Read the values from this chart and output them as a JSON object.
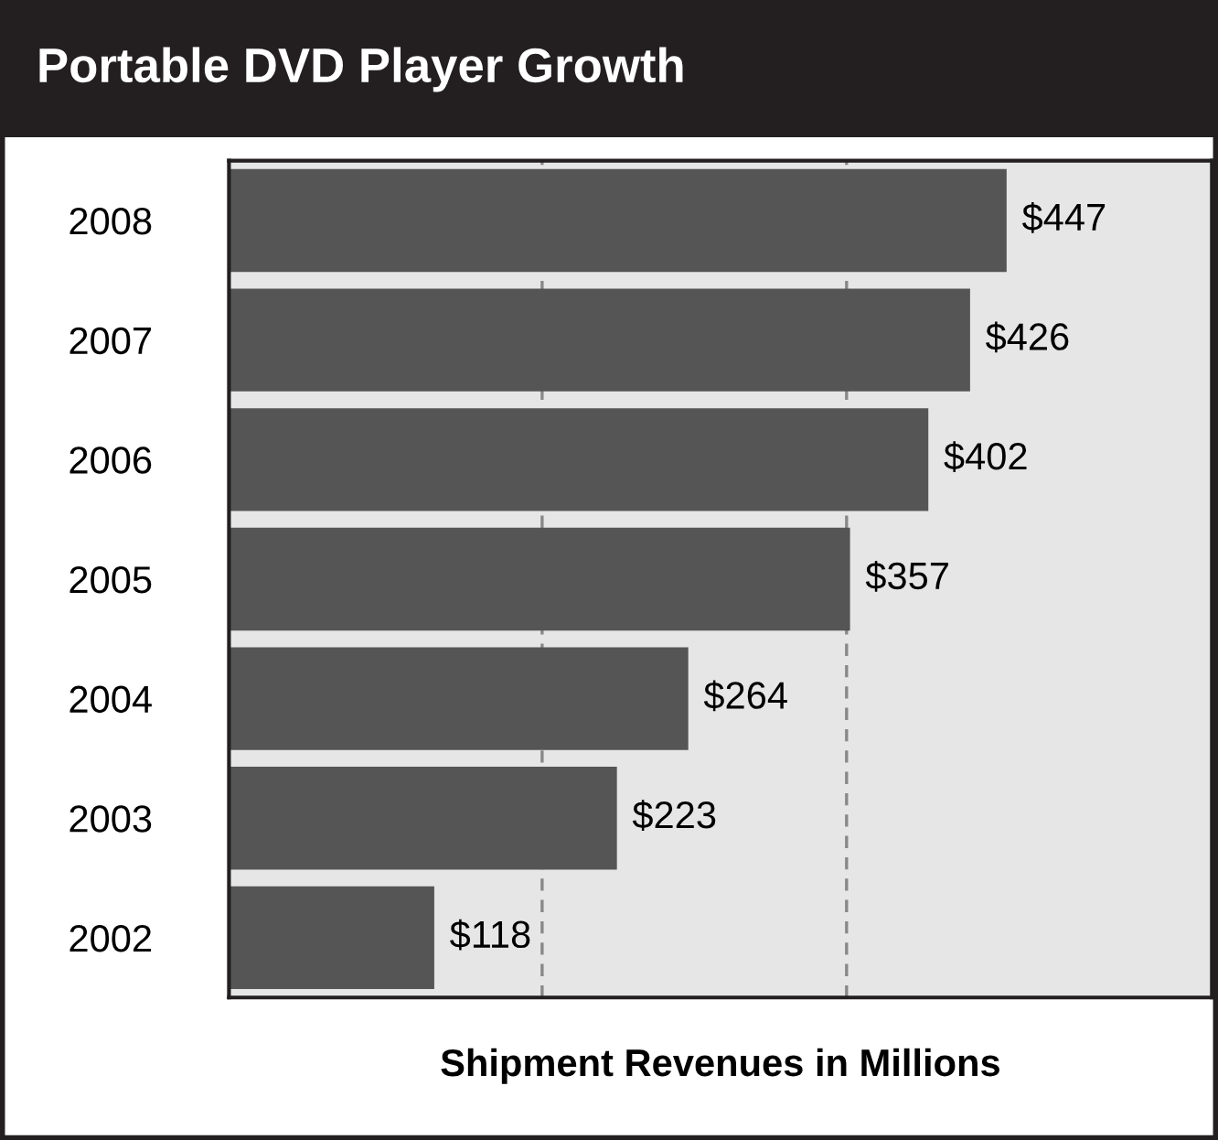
{
  "chart_data": {
    "type": "bar",
    "orientation": "horizontal",
    "title": "Portable DVD Player Growth",
    "xlabel": "Shipment Revenues in Millions",
    "categories": [
      "2008",
      "2007",
      "2006",
      "2005",
      "2004",
      "2003",
      "2002"
    ],
    "values": [
      447,
      426,
      402,
      357,
      264,
      223,
      118
    ],
    "value_labels": [
      "$447",
      "$426",
      "$402",
      "$357",
      "$264",
      "$223",
      "$118"
    ],
    "color": "#555555",
    "xlim": [
      0,
      565
    ],
    "ref_lines": [
      {
        "axis": "x",
        "value": 180,
        "color": "#888888",
        "line_style": "dashed"
      },
      {
        "axis": "x",
        "value": 355,
        "color": "#888888",
        "line_style": "dashed"
      }
    ],
    "tick_labels": "y"
  }
}
